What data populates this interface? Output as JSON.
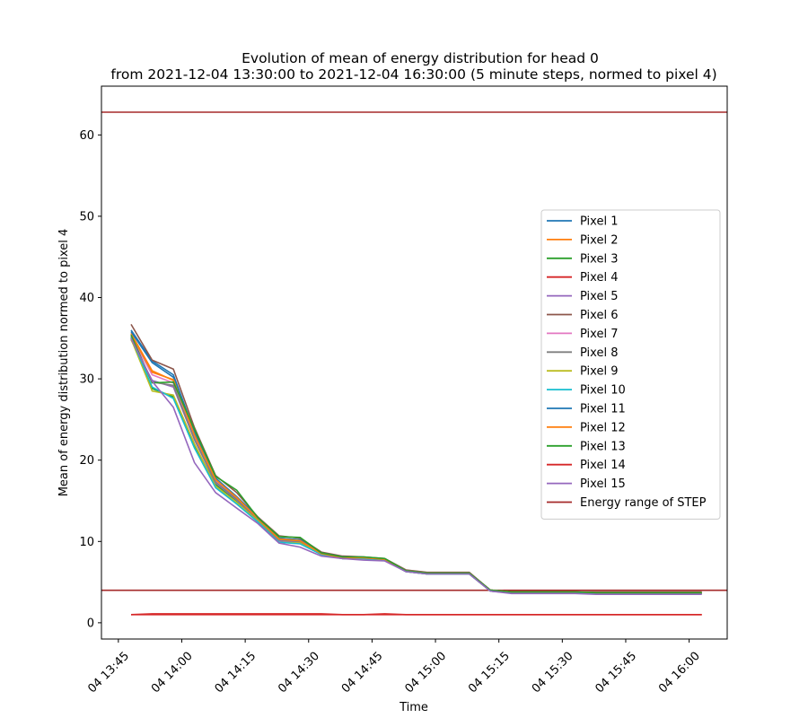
{
  "chart_data": {
    "type": "line",
    "title": "Evolution of mean of energy distribution for head 0",
    "subtitle": "from 2021-12-04 13:30:00 to 2021-12-04 16:30:00 (5 minute steps, normed to pixel 4)",
    "xlabel": "Time",
    "ylabel": "Mean of energy distribution normed to pixel 4",
    "x_ticks": [
      "04 13:45",
      "04 14:00",
      "04 14:15",
      "04 14:30",
      "04 14:45",
      "04 15:00",
      "04 15:15",
      "04 15:30",
      "04 15:45",
      "04 16:00"
    ],
    "y_ticks": [
      "0",
      "10",
      "20",
      "30",
      "40",
      "50",
      "60"
    ],
    "ylim": [
      -2,
      66
    ],
    "xlim": [
      "2021-12-04 13:41",
      "2021-12-04 16:09"
    ],
    "legend_position": "center-right",
    "x": [
      "2021-12-04 13:48",
      "2021-12-04 13:53",
      "2021-12-04 13:58",
      "2021-12-04 14:03",
      "2021-12-04 14:08",
      "2021-12-04 14:13",
      "2021-12-04 14:18",
      "2021-12-04 14:23",
      "2021-12-04 14:28",
      "2021-12-04 14:33",
      "2021-12-04 14:38",
      "2021-12-04 14:43",
      "2021-12-04 14:48",
      "2021-12-04 14:53",
      "2021-12-04 14:58",
      "2021-12-04 15:03",
      "2021-12-04 15:08",
      "2021-12-04 15:13",
      "2021-12-04 15:18",
      "2021-12-04 15:23",
      "2021-12-04 15:28",
      "2021-12-04 15:33",
      "2021-12-04 15:38",
      "2021-12-04 15:43",
      "2021-12-04 15:48",
      "2021-12-04 15:53",
      "2021-12-04 15:58",
      "2021-12-04 16:03"
    ],
    "series": [
      {
        "name": "Pixel 1",
        "color": "#1f77b4",
        "values": [
          36.0,
          32.2,
          30.5,
          23.5,
          17.8,
          15.5,
          13.0,
          10.4,
          10.2,
          8.6,
          8.0,
          8.0,
          7.8,
          6.4,
          6.1,
          6.1,
          6.1,
          4.0,
          3.8,
          3.8,
          3.8,
          3.7,
          3.7,
          3.7,
          3.7,
          3.7,
          3.7,
          3.7
        ]
      },
      {
        "name": "Pixel 2",
        "color": "#ff7f0e",
        "values": [
          35.6,
          31.0,
          29.8,
          23.0,
          17.5,
          15.4,
          12.8,
          10.2,
          10.0,
          8.5,
          8.0,
          8.0,
          7.8,
          6.4,
          6.1,
          6.1,
          6.1,
          4.0,
          3.8,
          3.8,
          3.8,
          3.8,
          3.7,
          3.7,
          3.7,
          3.7,
          3.7,
          3.7
        ]
      },
      {
        "name": "Pixel 3",
        "color": "#2ca02c",
        "values": [
          35.0,
          28.8,
          27.8,
          21.8,
          17.0,
          15.0,
          12.6,
          10.1,
          9.9,
          8.4,
          7.9,
          7.9,
          7.7,
          6.3,
          6.0,
          6.0,
          6.0,
          3.9,
          3.7,
          3.7,
          3.7,
          3.7,
          3.6,
          3.6,
          3.6,
          3.6,
          3.6,
          3.6
        ]
      },
      {
        "name": "Pixel 4",
        "color": "#d62728",
        "values": [
          1.0,
          1.0,
          1.0,
          1.0,
          1.0,
          1.0,
          1.0,
          1.0,
          1.0,
          1.0,
          1.0,
          1.0,
          1.0,
          1.0,
          1.0,
          1.0,
          1.0,
          1.0,
          1.0,
          1.0,
          1.0,
          1.0,
          1.0,
          1.0,
          1.0,
          1.0,
          1.0,
          1.0
        ]
      },
      {
        "name": "Pixel 5",
        "color": "#9467bd",
        "values": [
          34.8,
          29.8,
          29.0,
          22.5,
          17.2,
          15.1,
          12.7,
          10.1,
          9.9,
          8.4,
          7.9,
          7.9,
          7.7,
          6.3,
          6.0,
          6.0,
          6.0,
          3.9,
          3.7,
          3.7,
          3.7,
          3.7,
          3.6,
          3.6,
          3.6,
          3.6,
          3.6,
          3.6
        ]
      },
      {
        "name": "Pixel 6",
        "color": "#8c564b",
        "values": [
          36.7,
          32.3,
          31.2,
          24.0,
          18.1,
          16.0,
          13.0,
          10.7,
          10.4,
          8.7,
          8.2,
          8.1,
          7.9,
          6.5,
          6.2,
          6.2,
          6.2,
          4.0,
          3.8,
          3.8,
          3.8,
          3.8,
          3.8,
          3.8,
          3.8,
          3.8,
          3.8,
          3.8
        ]
      },
      {
        "name": "Pixel 7",
        "color": "#e377c2",
        "values": [
          35.3,
          30.5,
          29.5,
          22.8,
          17.4,
          15.3,
          12.8,
          10.3,
          10.1,
          8.5,
          8.0,
          8.0,
          7.8,
          6.4,
          6.1,
          6.1,
          6.1,
          4.0,
          3.8,
          3.8,
          3.8,
          3.7,
          3.7,
          3.7,
          3.7,
          3.7,
          3.7,
          3.7
        ]
      },
      {
        "name": "Pixel 8",
        "color": "#7f7f7f",
        "values": [
          35.2,
          29.6,
          29.2,
          22.6,
          17.3,
          15.2,
          12.7,
          10.2,
          10.0,
          8.5,
          8.0,
          8.0,
          7.8,
          6.4,
          6.1,
          6.1,
          6.1,
          4.0,
          3.8,
          3.8,
          3.8,
          3.7,
          3.7,
          3.7,
          3.7,
          3.7,
          3.7,
          3.7
        ]
      },
      {
        "name": "Pixel 9",
        "color": "#bcbd22",
        "values": [
          34.9,
          28.5,
          28.0,
          22.0,
          16.8,
          14.8,
          12.5,
          9.9,
          9.8,
          8.4,
          7.9,
          7.9,
          7.7,
          6.3,
          6.0,
          6.0,
          6.0,
          3.9,
          3.7,
          3.7,
          3.7,
          3.7,
          3.6,
          3.6,
          3.6,
          3.6,
          3.6,
          3.6
        ]
      },
      {
        "name": "Pixel 10",
        "color": "#17becf",
        "values": [
          35.1,
          29.0,
          27.6,
          21.5,
          16.6,
          14.6,
          12.4,
          9.9,
          9.7,
          8.4,
          7.9,
          7.9,
          7.7,
          6.3,
          6.0,
          6.0,
          6.0,
          3.9,
          3.7,
          3.7,
          3.7,
          3.7,
          3.6,
          3.6,
          3.6,
          3.6,
          3.6,
          3.6
        ]
      },
      {
        "name": "Pixel 11",
        "color": "#1f77b4",
        "values": [
          35.8,
          32.0,
          30.2,
          23.3,
          17.7,
          15.5,
          12.9,
          10.4,
          10.2,
          8.6,
          8.1,
          8.0,
          7.8,
          6.4,
          6.1,
          6.1,
          6.1,
          4.0,
          3.8,
          3.8,
          3.8,
          3.8,
          3.7,
          3.7,
          3.7,
          3.7,
          3.7,
          3.7
        ]
      },
      {
        "name": "Pixel 12",
        "color": "#ff7f0e",
        "values": [
          35.5,
          30.8,
          29.9,
          23.1,
          17.6,
          15.4,
          12.8,
          10.3,
          10.1,
          8.5,
          8.0,
          8.0,
          7.8,
          6.4,
          6.1,
          6.1,
          6.1,
          4.0,
          3.8,
          3.8,
          3.8,
          3.8,
          3.7,
          3.7,
          3.7,
          3.7,
          3.7,
          3.7
        ]
      },
      {
        "name": "Pixel 13",
        "color": "#2ca02c",
        "values": [
          35.4,
          29.5,
          29.6,
          23.8,
          18.0,
          16.3,
          12.9,
          10.6,
          10.5,
          8.6,
          8.1,
          8.1,
          7.9,
          6.4,
          6.1,
          6.1,
          6.1,
          4.0,
          3.8,
          3.8,
          3.8,
          3.8,
          3.7,
          3.7,
          3.7,
          3.7,
          3.7,
          3.7
        ]
      },
      {
        "name": "Pixel 14",
        "color": "#d62728",
        "values": [
          1.0,
          1.1,
          1.1,
          1.1,
          1.1,
          1.1,
          1.1,
          1.1,
          1.1,
          1.1,
          1.0,
          1.0,
          1.1,
          1.0,
          1.0,
          1.0,
          1.0,
          1.0,
          1.0,
          1.0,
          1.0,
          1.0,
          1.0,
          1.0,
          1.0,
          1.0,
          1.0,
          1.0
        ]
      },
      {
        "name": "Pixel 15",
        "color": "#9467bd",
        "values": [
          35.0,
          29.7,
          26.5,
          19.7,
          16.0,
          14.1,
          12.2,
          9.8,
          9.3,
          8.2,
          7.9,
          7.7,
          7.6,
          6.3,
          6.0,
          6.0,
          6.0,
          3.9,
          3.6,
          3.6,
          3.6,
          3.6,
          3.5,
          3.5,
          3.5,
          3.5,
          3.5,
          3.5
        ]
      }
    ],
    "reference_lines": {
      "name": "Energy range of STEP",
      "color": "#a52a2a",
      "values": [
        62.8,
        4.0
      ]
    }
  }
}
